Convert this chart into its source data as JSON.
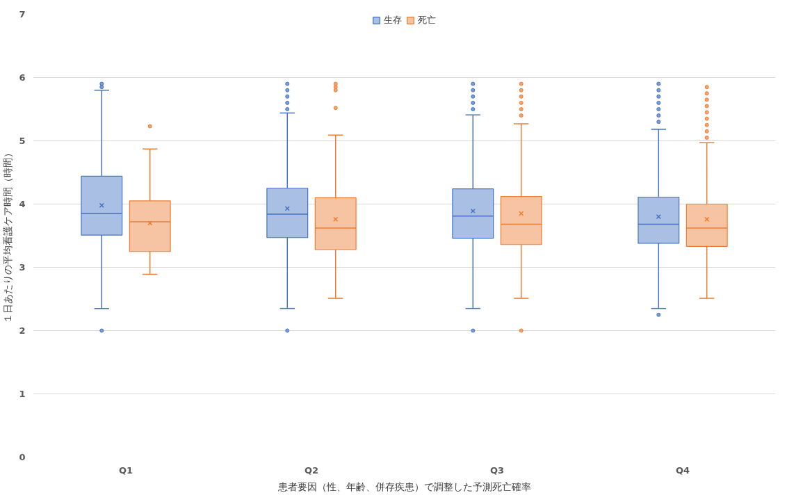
{
  "chart_data": {
    "type": "box",
    "categories": [
      "Q1",
      "Q2",
      "Q3",
      "Q4"
    ],
    "xlabel": "患者要因（性、年齢、併存疾患）で調整した予測死亡確率",
    "ylabel": "１日あたりの平均看護ケア時間（時間）",
    "ylim": [
      0,
      7
    ],
    "yticks": [
      0,
      1,
      2,
      3,
      4,
      5,
      6,
      7
    ],
    "grid": "y",
    "legend": "top",
    "series": [
      {
        "name": "生存",
        "color": "#4472c4",
        "boxes": [
          {
            "low": 2.35,
            "q1": 3.51,
            "median": 3.85,
            "q3": 4.44,
            "high": 5.8,
            "mean": 3.98,
            "outliers": [
              2.0,
              5.85,
              5.9
            ]
          },
          {
            "low": 2.35,
            "q1": 3.47,
            "median": 3.84,
            "q3": 4.25,
            "high": 5.44,
            "mean": 3.93,
            "outliers": [
              2.0,
              5.5,
              5.6,
              5.7,
              5.8,
              5.9
            ]
          },
          {
            "low": 2.35,
            "q1": 3.46,
            "median": 3.81,
            "q3": 4.24,
            "high": 5.41,
            "mean": 3.89,
            "outliers": [
              2.0,
              5.5,
              5.6,
              5.7,
              5.8,
              5.9
            ]
          },
          {
            "low": 2.35,
            "q1": 3.38,
            "median": 3.68,
            "q3": 4.11,
            "high": 5.18,
            "mean": 3.8,
            "outliers": [
              2.25,
              5.3,
              5.4,
              5.5,
              5.6,
              5.7,
              5.8,
              5.9
            ]
          }
        ]
      },
      {
        "name": "死亡",
        "color": "#ed7d31",
        "boxes": [
          {
            "low": 2.89,
            "q1": 3.25,
            "median": 3.72,
            "q3": 4.05,
            "high": 4.87,
            "mean": 3.7,
            "outliers": [
              5.23
            ]
          },
          {
            "low": 2.51,
            "q1": 3.28,
            "median": 3.62,
            "q3": 4.1,
            "high": 5.09,
            "mean": 3.76,
            "outliers": [
              5.52,
              5.8,
              5.85,
              5.9
            ]
          },
          {
            "low": 2.51,
            "q1": 3.36,
            "median": 3.68,
            "q3": 4.12,
            "high": 5.27,
            "mean": 3.85,
            "outliers": [
              2.0,
              5.4,
              5.5,
              5.6,
              5.7,
              5.8,
              5.9
            ]
          },
          {
            "low": 2.51,
            "q1": 3.33,
            "median": 3.62,
            "q3": 4.0,
            "high": 4.97,
            "mean": 3.76,
            "outliers": [
              5.05,
              5.15,
              5.25,
              5.35,
              5.45,
              5.55,
              5.65,
              5.75,
              5.85
            ]
          }
        ]
      }
    ]
  }
}
